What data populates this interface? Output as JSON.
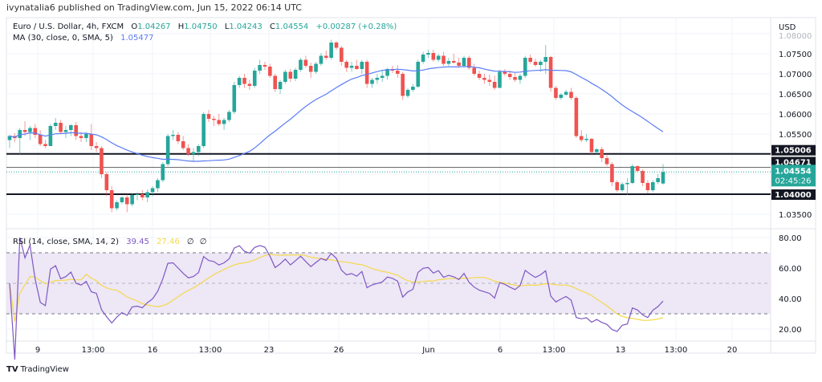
{
  "published": "ivynatalia6 published on TradingView.com, Jun 15, 2022 06:14 UTC",
  "branding": "TradingView",
  "colors": {
    "up": "#26a69a",
    "down": "#ef5350",
    "ma": "#5b7cf6",
    "rsi": "#7e57c2",
    "rsi_ma": "#f5d94b",
    "rsi_band": "#ede7f6",
    "level_line": "#131722",
    "current_price": "#26a69a"
  },
  "legend": {
    "symbol": "Euro / U.S. Dollar, 4h, FXCM",
    "o_label": "O",
    "o": "1.04267",
    "h_label": "H",
    "h": "1.04750",
    "l_label": "L",
    "l": "1.04243",
    "c_label": "C",
    "c": "1.04554",
    "change": "+0.00287 (+0.28%)",
    "ma_label": "MA (30, close, 0, SMA, 5)",
    "ma_value": "1.05477"
  },
  "rsi_legend": {
    "label": "RSI (14, close, SMA, 14, 2)",
    "rsi": "39.45",
    "rsi_ma": "27.46",
    "extra1": "∅",
    "extra2": "∅"
  },
  "chart_data": {
    "type": "candlestick",
    "currency": "USD",
    "price_ticks": [
      "1.08000",
      "1.07500",
      "1.07000",
      "1.06500",
      "1.06000",
      "1.05500",
      "1.03500"
    ],
    "ylim": [
      1.033,
      1.08
    ],
    "x_tick_labels": [
      "9",
      "13:00",
      "16",
      "13:00",
      "23",
      "26",
      "Jun",
      "6",
      "13:00",
      "13",
      "13:00",
      "20"
    ],
    "horizontal_levels": [
      {
        "price": 1.05006,
        "label": "1.05006",
        "style": "black"
      },
      {
        "price": 1.04671,
        "label": "1.04671",
        "style": "gray"
      },
      {
        "price": 1.04,
        "label": "1.04000",
        "style": "black"
      }
    ],
    "current_price": {
      "price": 1.04554,
      "label": "1.04554",
      "countdown": "02:45:26"
    },
    "ma_period": 30,
    "rsi": {
      "period": 14,
      "ma_period": 14,
      "ticks": [
        "80.00",
        "60.00",
        "40.00",
        "20.00"
      ],
      "upper_band": 70,
      "middle": 50,
      "lower_band": 30,
      "ylim": [
        15,
        85
      ]
    },
    "ohlc": [
      [
        1.0535,
        1.0548,
        1.0515,
        1.0545
      ],
      [
        1.0545,
        1.0552,
        1.053,
        1.054
      ],
      [
        1.054,
        1.0565,
        1.05,
        1.056
      ],
      [
        1.056,
        1.0582,
        1.0545,
        1.0555
      ],
      [
        1.0555,
        1.057,
        1.0535,
        1.0565
      ],
      [
        1.0565,
        1.0575,
        1.054,
        1.0548
      ],
      [
        1.0548,
        1.056,
        1.052,
        1.0525
      ],
      [
        1.0525,
        1.0535,
        1.0515,
        1.052
      ],
      [
        1.052,
        1.0575,
        1.052,
        1.057
      ],
      [
        1.057,
        1.059,
        1.056,
        1.0578
      ],
      [
        1.0578,
        1.0585,
        1.055,
        1.0555
      ],
      [
        1.0555,
        1.057,
        1.054,
        1.056
      ],
      [
        1.056,
        1.0575,
        1.0545,
        1.0572
      ],
      [
        1.0572,
        1.058,
        1.0535,
        1.0545
      ],
      [
        1.0545,
        1.0555,
        1.053,
        1.054
      ],
      [
        1.054,
        1.0555,
        1.053,
        1.055
      ],
      [
        1.055,
        1.0575,
        1.051,
        1.052
      ],
      [
        1.052,
        1.053,
        1.0505,
        1.0515
      ],
      [
        1.0515,
        1.052,
        1.044,
        1.045
      ],
      [
        1.045,
        1.0455,
        1.0395,
        1.041
      ],
      [
        1.041,
        1.042,
        1.0355,
        1.0365
      ],
      [
        1.0365,
        1.0385,
        1.036,
        1.038
      ],
      [
        1.038,
        1.0395,
        1.0375,
        1.0392
      ],
      [
        1.0392,
        1.04,
        1.0355,
        1.0375
      ],
      [
        1.0375,
        1.0402,
        1.037,
        1.0398
      ],
      [
        1.0398,
        1.0405,
        1.0385,
        1.04
      ],
      [
        1.04,
        1.041,
        1.0385,
        1.0392
      ],
      [
        1.0392,
        1.0412,
        1.038,
        1.0405
      ],
      [
        1.0405,
        1.042,
        1.0395,
        1.0415
      ],
      [
        1.0415,
        1.044,
        1.0405,
        1.0435
      ],
      [
        1.0435,
        1.048,
        1.043,
        1.0475
      ],
      [
        1.0475,
        1.055,
        1.047,
        1.0545
      ],
      [
        1.0545,
        1.056,
        1.0535,
        1.0548
      ],
      [
        1.0548,
        1.0555,
        1.0525,
        1.0532
      ],
      [
        1.0532,
        1.0545,
        1.051,
        1.0515
      ],
      [
        1.0515,
        1.0525,
        1.0495,
        1.05
      ],
      [
        1.05,
        1.0515,
        1.048,
        1.0505
      ],
      [
        1.0505,
        1.0525,
        1.0495,
        1.052
      ],
      [
        1.052,
        1.0605,
        1.0515,
        1.06
      ],
      [
        1.06,
        1.061,
        1.058,
        1.0588
      ],
      [
        1.0588,
        1.0595,
        1.057,
        1.0585
      ],
      [
        1.0585,
        1.06,
        1.057,
        1.0575
      ],
      [
        1.0575,
        1.059,
        1.056,
        1.0585
      ],
      [
        1.0585,
        1.061,
        1.058,
        1.0605
      ],
      [
        1.0605,
        1.068,
        1.06,
        1.0672
      ],
      [
        1.0672,
        1.0695,
        1.0665,
        1.069
      ],
      [
        1.069,
        1.07,
        1.0665,
        1.0675
      ],
      [
        1.0675,
        1.0685,
        1.066,
        1.067
      ],
      [
        1.067,
        1.0715,
        1.0665,
        1.0708
      ],
      [
        1.0708,
        1.0735,
        1.07,
        1.0722
      ],
      [
        1.0722,
        1.073,
        1.071,
        1.0718
      ],
      [
        1.0718,
        1.0725,
        1.069,
        1.0695
      ],
      [
        1.0695,
        1.07,
        1.0655,
        1.0662
      ],
      [
        1.0662,
        1.0685,
        1.065,
        1.068
      ],
      [
        1.068,
        1.071,
        1.0675,
        1.0705
      ],
      [
        1.0705,
        1.0712,
        1.068,
        1.0688
      ],
      [
        1.0688,
        1.0715,
        1.0682,
        1.071
      ],
      [
        1.071,
        1.074,
        1.0705,
        1.0735
      ],
      [
        1.0735,
        1.0745,
        1.0715,
        1.072
      ],
      [
        1.072,
        1.0728,
        1.069,
        1.0705
      ],
      [
        1.0705,
        1.073,
        1.07,
        1.0725
      ],
      [
        1.0725,
        1.0752,
        1.072,
        1.0745
      ],
      [
        1.0745,
        1.0758,
        1.0735,
        1.074
      ],
      [
        1.074,
        1.0785,
        1.0735,
        1.0778
      ],
      [
        1.0778,
        1.0782,
        1.076,
        1.0765
      ],
      [
        1.0765,
        1.077,
        1.072,
        1.073
      ],
      [
        1.073,
        1.0735,
        1.0705,
        1.0715
      ],
      [
        1.0715,
        1.073,
        1.0705,
        1.072
      ],
      [
        1.072,
        1.0735,
        1.071,
        1.0712
      ],
      [
        1.0712,
        1.0735,
        1.07,
        1.073
      ],
      [
        1.073,
        1.0735,
        1.0665,
        1.0675
      ],
      [
        1.0675,
        1.069,
        1.0665,
        1.0685
      ],
      [
        1.0685,
        1.07,
        1.0675,
        1.069
      ],
      [
        1.069,
        1.071,
        1.068,
        1.0695
      ],
      [
        1.0695,
        1.0715,
        1.0685,
        1.0712
      ],
      [
        1.0712,
        1.072,
        1.0702,
        1.0708
      ],
      [
        1.0708,
        1.0722,
        1.069,
        1.07
      ],
      [
        1.07,
        1.0705,
        1.0635,
        1.0645
      ],
      [
        1.0645,
        1.0665,
        1.064,
        1.066
      ],
      [
        1.066,
        1.0675,
        1.0655,
        1.0668
      ],
      [
        1.0668,
        1.0735,
        1.0665,
        1.073
      ],
      [
        1.073,
        1.0755,
        1.0725,
        1.0748
      ],
      [
        1.0748,
        1.076,
        1.074,
        1.0752
      ],
      [
        1.0752,
        1.076,
        1.073,
        1.0735
      ],
      [
        1.0735,
        1.075,
        1.073,
        1.0745
      ],
      [
        1.0745,
        1.0755,
        1.072,
        1.0725
      ],
      [
        1.0725,
        1.074,
        1.072,
        1.0732
      ],
      [
        1.0732,
        1.075,
        1.0725,
        1.0728
      ],
      [
        1.0728,
        1.074,
        1.0715,
        1.072
      ],
      [
        1.072,
        1.0745,
        1.0715,
        1.074
      ],
      [
        1.074,
        1.0745,
        1.071,
        1.0715
      ],
      [
        1.0715,
        1.0725,
        1.0695,
        1.07
      ],
      [
        1.07,
        1.0708,
        1.0685,
        1.069
      ],
      [
        1.069,
        1.07,
        1.0675,
        1.0685
      ],
      [
        1.0685,
        1.0698,
        1.067,
        1.068
      ],
      [
        1.068,
        1.0695,
        1.066,
        1.0665
      ],
      [
        1.0665,
        1.071,
        1.0665,
        1.0705
      ],
      [
        1.0705,
        1.0712,
        1.0695,
        1.07
      ],
      [
        1.07,
        1.0708,
        1.0685,
        1.0692
      ],
      [
        1.0692,
        1.0702,
        1.068,
        1.0685
      ],
      [
        1.0685,
        1.07,
        1.0675,
        1.0695
      ],
      [
        1.0695,
        1.0745,
        1.069,
        1.074
      ],
      [
        1.074,
        1.0748,
        1.0725,
        1.073
      ],
      [
        1.073,
        1.0738,
        1.0718,
        1.0722
      ],
      [
        1.0722,
        1.0735,
        1.0705,
        1.073
      ],
      [
        1.073,
        1.0772,
        1.07,
        1.0742
      ],
      [
        1.0742,
        1.0745,
        1.0655,
        1.0665
      ],
      [
        1.0665,
        1.067,
        1.0635,
        1.064
      ],
      [
        1.064,
        1.0652,
        1.0635,
        1.0648
      ],
      [
        1.0648,
        1.066,
        1.0645,
        1.0655
      ],
      [
        1.0655,
        1.0665,
        1.0635,
        1.064
      ],
      [
        1.064,
        1.0645,
        1.054,
        1.0545
      ],
      [
        1.0545,
        1.056,
        1.053,
        1.0535
      ],
      [
        1.0535,
        1.055,
        1.053,
        1.0538
      ],
      [
        1.0538,
        1.054,
        1.05,
        1.0505
      ],
      [
        1.0505,
        1.0515,
        1.05,
        1.0512
      ],
      [
        1.0512,
        1.0518,
        1.048,
        1.049
      ],
      [
        1.049,
        1.05,
        1.047,
        1.0475
      ],
      [
        1.0475,
        1.048,
        1.042,
        1.043
      ],
      [
        1.043,
        1.0435,
        1.0405,
        1.041
      ],
      [
        1.041,
        1.043,
        1.0405,
        1.0425
      ],
      [
        1.0425,
        1.044,
        1.0398,
        1.0428
      ],
      [
        1.0428,
        1.0475,
        1.0425,
        1.047
      ],
      [
        1.047,
        1.0472,
        1.0455,
        1.0458
      ],
      [
        1.0458,
        1.0462,
        1.042,
        1.0428
      ],
      [
        1.0428,
        1.0435,
        1.0402,
        1.041
      ],
      [
        1.041,
        1.0435,
        1.0405,
        1.043
      ],
      [
        1.043,
        1.045,
        1.0425,
        1.044
      ],
      [
        1.04267,
        1.0475,
        1.04243,
        1.04554
      ]
    ]
  }
}
